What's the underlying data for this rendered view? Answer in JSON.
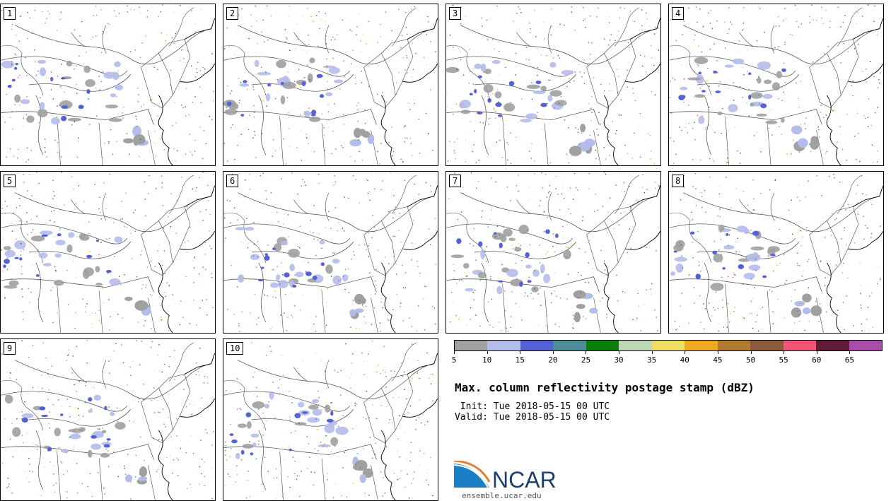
{
  "members": [
    {
      "label": "1"
    },
    {
      "label": "2"
    },
    {
      "label": "3"
    },
    {
      "label": "4"
    },
    {
      "label": "5"
    },
    {
      "label": "6"
    },
    {
      "label": "7"
    },
    {
      "label": "8"
    },
    {
      "label": "9"
    },
    {
      "label": "10"
    }
  ],
  "colorbar": {
    "colors": [
      "#a0a0a0",
      "#b4bdea",
      "#5462d6",
      "#4a8f99",
      "#0a800a",
      "#bcd8b4",
      "#eedd66",
      "#eeaa22",
      "#b47a33",
      "#8b5a3a",
      "#ee5577",
      "#661a3a",
      "#aa4cad"
    ],
    "ticks": [
      "5",
      "10",
      "15",
      "20",
      "25",
      "30",
      "35",
      "40",
      "45",
      "50",
      "55",
      "60",
      "65"
    ]
  },
  "title": "Max. column reflectivity postage stamp (dBZ)",
  "init_text": " Init: Tue 2018-05-15 00 UTC",
  "valid_text": "Valid: Tue 2018-05-15 00 UTC",
  "logo": {
    "text": "NCAR",
    "url": "ensemble.ucar.edu"
  }
}
